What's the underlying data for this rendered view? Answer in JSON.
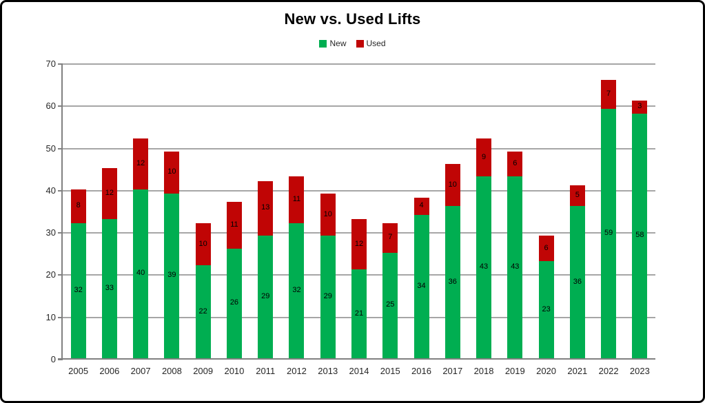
{
  "chart": {
    "title": "New vs. Used Lifts"
  },
  "chart_data": {
    "type": "bar",
    "stacked": true,
    "title": "New vs. Used Lifts",
    "xlabel": "",
    "ylabel": "",
    "categories": [
      "2005",
      "2006",
      "2007",
      "2008",
      "2009",
      "2010",
      "2011",
      "2012",
      "2013",
      "2014",
      "2015",
      "2016",
      "2017",
      "2018",
      "2019",
      "2020",
      "2021",
      "2022",
      "2023"
    ],
    "series": [
      {
        "name": "New",
        "color": "#00AE51",
        "values": [
          32,
          33,
          40,
          39,
          22,
          26,
          29,
          32,
          29,
          21,
          25,
          34,
          36,
          43,
          43,
          23,
          36,
          59,
          58
        ]
      },
      {
        "name": "Used",
        "color": "#C00505",
        "values": [
          8,
          12,
          12,
          10,
          10,
          11,
          13,
          11,
          10,
          12,
          7,
          4,
          10,
          9,
          6,
          6,
          5,
          7,
          3
        ]
      }
    ],
    "totals": [
      40,
      45,
      52,
      49,
      32,
      37,
      42,
      43,
      39,
      33,
      32,
      38,
      46,
      52,
      49,
      29,
      41,
      66,
      61
    ],
    "ylim": [
      0,
      70
    ],
    "yticks": [
      0,
      10,
      20,
      30,
      40,
      50,
      60,
      70
    ],
    "grid": true,
    "legend_position": "top",
    "bar_value_labels": true
  },
  "colors": {
    "new_series": "#00AE51",
    "used_series": "#C00505",
    "gridline": "#A6A6A6",
    "axis": "#808080",
    "tick_text": "#262626",
    "title_text": "#000000",
    "background": "#FFFFFF",
    "frame_border": "#000000"
  }
}
